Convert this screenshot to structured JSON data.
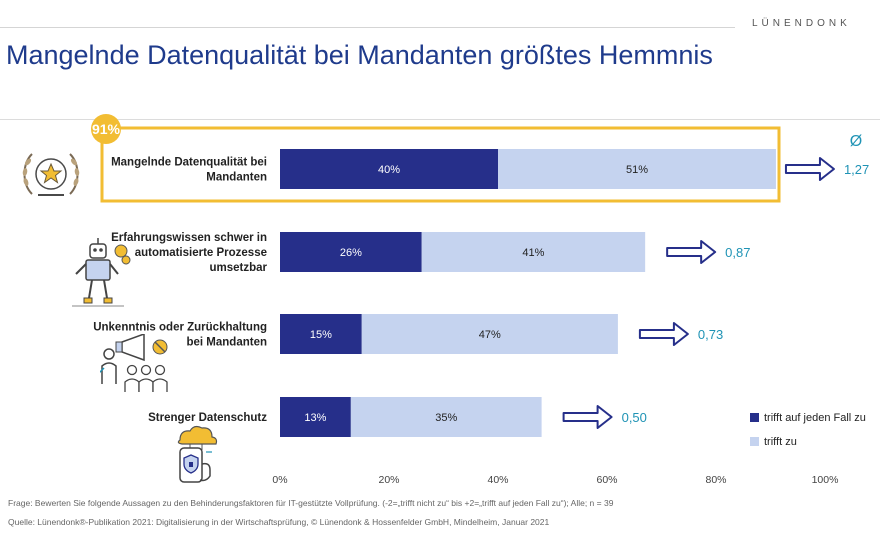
{
  "brand": "LÜNENDONK",
  "title": "Mangelnde Datenqualität bei Mandanten größtes Hemmnis",
  "footer": {
    "question": "Frage: Bewerten Sie folgende Aussagen zu den Behinderungsfaktoren für IT-gestützte Vollprüfung. (-2=„trifft nicht zu“ bis +2=„trifft auf jeden Fall zu“); Alle; n = 39",
    "source": "Quelle: Lünendonk®-Publikation 2021: Digitalisierung in der Wirtschaftsprüfung, © Lünendonk & Hossenfelder GmbH, Mindelheim, Januar 2021"
  },
  "colors": {
    "strong": "#262f8a",
    "light": "#c5d3ef",
    "highlight": "#f2bd33",
    "avg": "#1f93b5",
    "arrow": "#262f8a"
  },
  "chart_data": {
    "type": "bar",
    "orientation": "horizontal",
    "stacked": true,
    "categories": [
      [
        "Mangelnde Datenqualität bei",
        "Mandanten"
      ],
      [
        "Erfahrungswissen schwer in",
        "automatisierte Prozesse",
        "umsetzbar"
      ],
      [
        "Unkenntnis oder Zurückhaltung",
        "bei Mandanten"
      ],
      [
        "Strenger Datenschutz"
      ]
    ],
    "series": [
      {
        "name": "trifft auf jeden Fall zu",
        "values": [
          40,
          26,
          15,
          13
        ],
        "labels": [
          "40%",
          "26%",
          "15%",
          "13%"
        ]
      },
      {
        "name": "trifft zu",
        "values": [
          51,
          41,
          47,
          35
        ],
        "labels": [
          "51%",
          "41%",
          "47%",
          "35%"
        ]
      }
    ],
    "averages": [
      "1,27",
      "0,87",
      "0,73",
      "0,50"
    ],
    "avg_symbol": "Ø",
    "highlight": {
      "category_index": 0,
      "label": "91%"
    },
    "xlim": [
      0,
      100
    ],
    "xticks": [
      "0%",
      "20%",
      "40%",
      "60%",
      "80%",
      "100%"
    ],
    "legend_position": "right",
    "grid": false
  },
  "icons": [
    "award-star-icon",
    "robot-icon",
    "megaphone-crowd-icon",
    "cloud-phone-shield-icon"
  ]
}
